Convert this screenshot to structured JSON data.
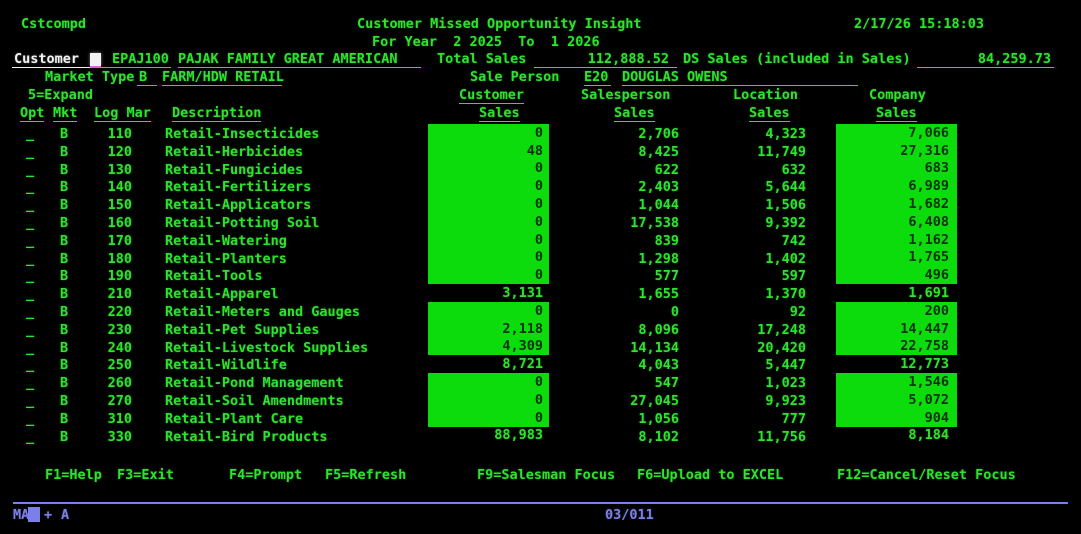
{
  "screen": {
    "program": "Cstcompd",
    "title": "Customer Missed Opportunity Insight",
    "date": "2/17/26",
    "time": "15:18:03",
    "period": "For Year  2 2025  To  1 2026"
  },
  "customer": {
    "label": "Customer",
    "code": "EPAJ100",
    "name": "PAJAK FAMILY GREAT AMERICAN",
    "total_sales_label": "Total Sales",
    "total_sales": "112,888.52",
    "ds_sales_label": "DS Sales (included in Sales)",
    "ds_sales": "84,259.73"
  },
  "market": {
    "label": "Market Type",
    "code": "B",
    "name": "FARM/HDW RETAIL",
    "sale_person_label": "Sale Person",
    "sale_person_code": "E20",
    "sale_person_name": "DOUGLAS OWENS"
  },
  "table": {
    "expand_hint": "5=Expand",
    "headers": {
      "opt": "Opt",
      "mkt": "Mkt",
      "log_mar": "Log Mar",
      "description": "Description",
      "group_customer": "Customer",
      "group_salesperson": "Salesperson",
      "group_location": "Location",
      "group_company": "Company",
      "sales": "Sales"
    },
    "rows": [
      {
        "opt": "_",
        "mkt": "B",
        "log_mar": "110",
        "desc": "Retail-Insecticides",
        "cust": "0",
        "sp": "2,706",
        "loc": "4,323",
        "comp": "7,066",
        "highlight": true
      },
      {
        "opt": "_",
        "mkt": "B",
        "log_mar": "120",
        "desc": "Retail-Herbicides",
        "cust": "48",
        "sp": "8,425",
        "loc": "11,749",
        "comp": "27,316",
        "highlight": true
      },
      {
        "opt": "_",
        "mkt": "B",
        "log_mar": "130",
        "desc": "Retail-Fungicides",
        "cust": "0",
        "sp": "622",
        "loc": "632",
        "comp": "683",
        "highlight": true
      },
      {
        "opt": "_",
        "mkt": "B",
        "log_mar": "140",
        "desc": "Retail-Fertilizers",
        "cust": "0",
        "sp": "2,403",
        "loc": "5,644",
        "comp": "6,989",
        "highlight": true
      },
      {
        "opt": "_",
        "mkt": "B",
        "log_mar": "150",
        "desc": "Retail-Applicators",
        "cust": "0",
        "sp": "1,044",
        "loc": "1,506",
        "comp": "1,682",
        "highlight": true
      },
      {
        "opt": "_",
        "mkt": "B",
        "log_mar": "160",
        "desc": "Retail-Potting Soil",
        "cust": "0",
        "sp": "17,538",
        "loc": "9,392",
        "comp": "6,408",
        "highlight": true
      },
      {
        "opt": "_",
        "mkt": "B",
        "log_mar": "170",
        "desc": "Retail-Watering",
        "cust": "0",
        "sp": "839",
        "loc": "742",
        "comp": "1,162",
        "highlight": true
      },
      {
        "opt": "_",
        "mkt": "B",
        "log_mar": "180",
        "desc": "Retail-Planters",
        "cust": "0",
        "sp": "1,298",
        "loc": "1,402",
        "comp": "1,765",
        "highlight": true
      },
      {
        "opt": "_",
        "mkt": "B",
        "log_mar": "190",
        "desc": "Retail-Tools",
        "cust": "0",
        "sp": "577",
        "loc": "597",
        "comp": "496",
        "highlight": true
      },
      {
        "opt": "_",
        "mkt": "B",
        "log_mar": "210",
        "desc": "Retail-Apparel",
        "cust": "3,131",
        "sp": "1,655",
        "loc": "1,370",
        "comp": "1,691",
        "highlight": false
      },
      {
        "opt": "_",
        "mkt": "B",
        "log_mar": "220",
        "desc": "Retail-Meters and Gauges",
        "cust": "0",
        "sp": "0",
        "loc": "92",
        "comp": "200",
        "highlight": true
      },
      {
        "opt": "_",
        "mkt": "B",
        "log_mar": "230",
        "desc": "Retail-Pet Supplies",
        "cust": "2,118",
        "sp": "8,096",
        "loc": "17,248",
        "comp": "14,447",
        "highlight": true
      },
      {
        "opt": "_",
        "mkt": "B",
        "log_mar": "240",
        "desc": "Retail-Livestock Supplies",
        "cust": "4,309",
        "sp": "14,134",
        "loc": "20,420",
        "comp": "22,758",
        "highlight": true
      },
      {
        "opt": "_",
        "mkt": "B",
        "log_mar": "250",
        "desc": "Retail-Wildlife",
        "cust": "8,721",
        "sp": "4,043",
        "loc": "5,447",
        "comp": "12,773",
        "highlight": false
      },
      {
        "opt": "_",
        "mkt": "B",
        "log_mar": "260",
        "desc": "Retail-Pond Management",
        "cust": "0",
        "sp": "547",
        "loc": "1,023",
        "comp": "1,546",
        "highlight": true
      },
      {
        "opt": "_",
        "mkt": "B",
        "log_mar": "270",
        "desc": "Retail-Soil Amendments",
        "cust": "0",
        "sp": "27,045",
        "loc": "9,923",
        "comp": "5,072",
        "highlight": true
      },
      {
        "opt": "_",
        "mkt": "B",
        "log_mar": "310",
        "desc": "Retail-Plant Care",
        "cust": "0",
        "sp": "1,056",
        "loc": "777",
        "comp": "904",
        "highlight": true
      },
      {
        "opt": "_",
        "mkt": "B",
        "log_mar": "330",
        "desc": "Retail-Bird Products",
        "cust": "88,983",
        "sp": "8,102",
        "loc": "11,756",
        "comp": "8,184",
        "highlight": false
      }
    ]
  },
  "function_keys": {
    "f1": "F1=Help",
    "f3": "F3=Exit",
    "f4": "F4=Prompt",
    "f5": "F5=Refresh",
    "f9": "F9=Salesman Focus",
    "f6": "F6=Upload to EXCEL",
    "f12": "F12=Cancel/Reset Focus"
  },
  "oia": {
    "system_indicator": "MA",
    "plus": "+",
    "keyboard_indicator": "A",
    "cursor_position": "03/011"
  },
  "colors": {
    "green": "#2ee22e",
    "highlight_background": "#0cdb0c",
    "highlight_text": "#04330a",
    "white": "#f2f2f2",
    "blue": "#7b80e8",
    "magenta": "#e060d8",
    "background": "#000000"
  }
}
